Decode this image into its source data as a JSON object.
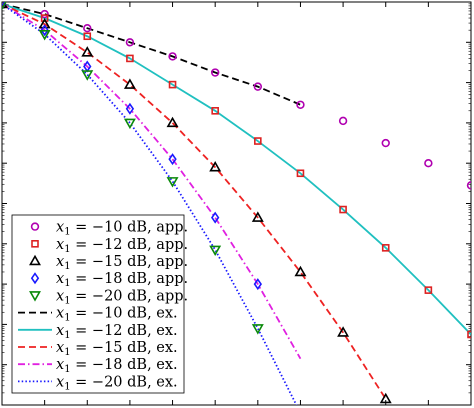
{
  "chart_data": {
    "type": "line",
    "title": "",
    "xlabel": "",
    "ylabel": "",
    "x_range": [
      0,
      11
    ],
    "y_log": true,
    "y_range": [
      -10,
      0
    ],
    "x_ticks": [
      0,
      1,
      2,
      3,
      4,
      5,
      6,
      7,
      8,
      9,
      10,
      11
    ],
    "y_ticks": [
      0,
      -1,
      -2,
      -3,
      -4,
      -5,
      -6,
      -7,
      -8,
      -9,
      -10
    ],
    "grid": false,
    "legend_position": "bottom-left",
    "series": [
      {
        "name": "$x_1 = -10$ dB, app.",
        "kind": "marker",
        "marker": "circle",
        "color": "#b000b0",
        "x": [
          0,
          1,
          2,
          3,
          4,
          5,
          6,
          7,
          8,
          9,
          10,
          11
        ],
        "y": [
          -0.05,
          -0.3,
          -0.65,
          -1.0,
          -1.35,
          -1.75,
          -2.1,
          -2.55,
          -2.95,
          -3.5,
          -4.0,
          -4.55
        ]
      },
      {
        "name": "$x_1 = -12$ dB, app.",
        "kind": "marker",
        "marker": "square",
        "color": "#dd2222",
        "x": [
          0,
          1,
          2,
          3,
          4,
          5,
          6,
          7,
          8,
          9,
          10,
          11
        ],
        "y": [
          -0.05,
          -0.4,
          -0.85,
          -1.4,
          -2.05,
          -2.7,
          -3.45,
          -4.25,
          -5.15,
          -6.1,
          -7.15,
          -8.25
        ]
      },
      {
        "name": "$x_1 = -15$ dB, app.",
        "kind": "marker",
        "marker": "triangle-up",
        "color": "#000000",
        "x": [
          0,
          1,
          2,
          3,
          4,
          5,
          6,
          7,
          8,
          9
        ],
        "y": [
          -0.05,
          -0.55,
          -1.25,
          -2.05,
          -3.0,
          -4.1,
          -5.35,
          -6.7,
          -8.2,
          -9.85
        ]
      },
      {
        "name": "$x_1 = -18$ dB, app.",
        "kind": "marker",
        "marker": "diamond",
        "color": "#1a1aff",
        "x": [
          0,
          1,
          2,
          3,
          4,
          5,
          6
        ],
        "y": [
          -0.05,
          -0.7,
          -1.6,
          -2.65,
          -3.9,
          -5.35,
          -7.0
        ]
      },
      {
        "name": "$x_1 = -20$ dB, app.",
        "kind": "marker",
        "marker": "triangle-down",
        "color": "#0a8a0a",
        "x": [
          0,
          1,
          2,
          3,
          4,
          5,
          6
        ],
        "y": [
          -0.05,
          -0.8,
          -1.8,
          -3.0,
          -4.45,
          -6.15,
          -8.1
        ]
      },
      {
        "name": "$x_1 = -10$ dB, ex.",
        "kind": "line",
        "dash": "dash",
        "color": "#000000",
        "x": [
          0,
          1,
          2,
          3,
          4,
          5,
          6,
          7
        ],
        "y": [
          -0.05,
          -0.3,
          -0.65,
          -1.0,
          -1.35,
          -1.75,
          -2.1,
          -2.55
        ]
      },
      {
        "name": "$x_1 = -12$ dB, ex.",
        "kind": "line",
        "dash": "solid",
        "color": "#20c0c0",
        "x": [
          0,
          1,
          2,
          3,
          4,
          5,
          6,
          7,
          8,
          9,
          10,
          11
        ],
        "y": [
          -0.05,
          -0.4,
          -0.85,
          -1.4,
          -2.05,
          -2.7,
          -3.45,
          -4.25,
          -5.15,
          -6.1,
          -7.15,
          -8.25
        ]
      },
      {
        "name": "$x_1 = -15$ dB, ex.",
        "kind": "line",
        "dash": "dash",
        "color": "#ee2222",
        "x": [
          0,
          1,
          2,
          3,
          4,
          5,
          6,
          7,
          8,
          9
        ],
        "y": [
          -0.05,
          -0.55,
          -1.25,
          -2.05,
          -3.0,
          -4.1,
          -5.35,
          -6.7,
          -8.2,
          -9.85
        ]
      },
      {
        "name": "$x_1 = -18$ dB, ex.",
        "kind": "line",
        "dash": "dashdot",
        "color": "#e020e0",
        "x": [
          0,
          1,
          2,
          3,
          4,
          5,
          6,
          7
        ],
        "y": [
          -0.05,
          -0.7,
          -1.6,
          -2.65,
          -3.9,
          -5.35,
          -7.0,
          -8.85
        ]
      },
      {
        "name": "$x_1 = -20$ dB, ex.",
        "kind": "line",
        "dash": "dot",
        "color": "#1a1aff",
        "x": [
          0,
          1,
          2,
          3,
          4,
          5,
          6,
          7
        ],
        "y": [
          -0.05,
          -0.8,
          -1.8,
          -3.0,
          -4.45,
          -6.15,
          -8.1,
          -10.2
        ]
      }
    ]
  }
}
